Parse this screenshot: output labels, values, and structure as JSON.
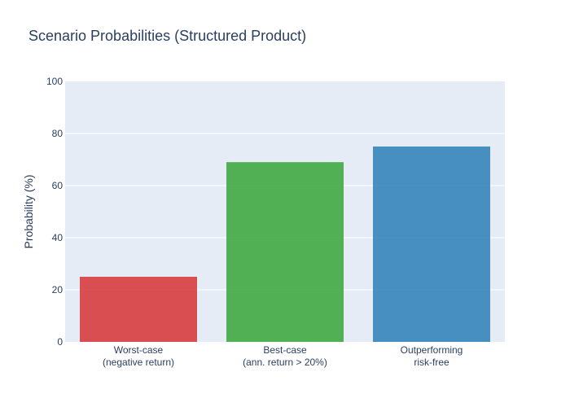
{
  "chart_data": {
    "type": "bar",
    "title": "Scenario Probabilities (Structured Product)",
    "xlabel": "",
    "ylabel": "Probability (%)",
    "ylim": [
      0,
      100
    ],
    "yticks": [
      0,
      20,
      40,
      60,
      80,
      100
    ],
    "grid": true,
    "categories": [
      [
        "Worst-case",
        "(negative return)"
      ],
      [
        "Best-case",
        "(ann. return > 20%)"
      ],
      [
        "Outperforming",
        "risk-free"
      ]
    ],
    "values": [
      25,
      69,
      75
    ],
    "colors": [
      "#d62728",
      "#2ca02c",
      "#1f77b4"
    ]
  }
}
